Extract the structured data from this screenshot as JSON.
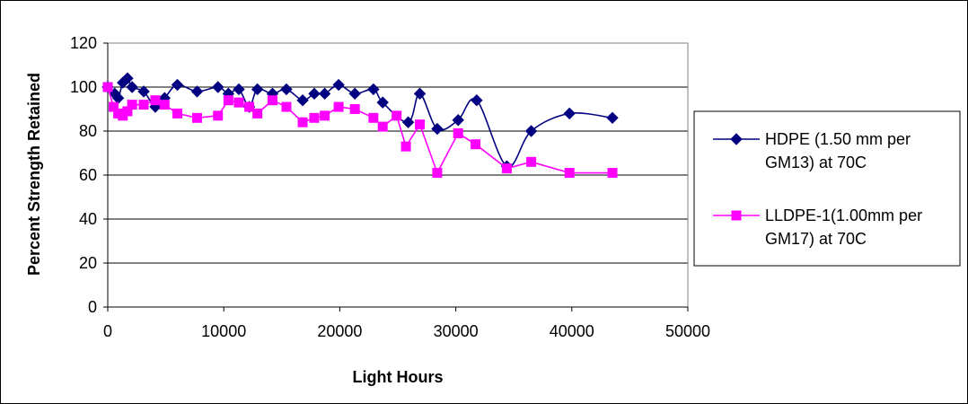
{
  "chart_data": {
    "type": "line",
    "title": "",
    "xlabel": "Light Hours",
    "ylabel": "Percent Strength Retained",
    "xlim": [
      0,
      50000
    ],
    "ylim": [
      0,
      120
    ],
    "xticks": [
      "0",
      "10000",
      "20000",
      "30000",
      "40000",
      "50000"
    ],
    "yticks": [
      "0",
      "20",
      "40",
      "60",
      "80",
      "100",
      "120"
    ],
    "grid": "horizontal",
    "legend_position": "right",
    "series": [
      {
        "name": "HDPE (1.50 mm per GM13) at 70C",
        "name_lines": [
          "HDPE (1.50 mm per",
          "GM13) at 70C"
        ],
        "color": "#000080",
        "marker": "diamond",
        "smooth": true,
        "x": [
          0,
          600,
          900,
          1300,
          1700,
          2100,
          3100,
          4100,
          4900,
          6000,
          7700,
          9500,
          10400,
          11300,
          12200,
          12900,
          14200,
          15400,
          16800,
          17800,
          18700,
          19900,
          21300,
          22900,
          23700,
          25900,
          26900,
          28400,
          30200,
          31800,
          34400,
          36500,
          39800,
          43500
        ],
        "y": [
          100,
          97,
          95,
          102,
          104,
          100,
          98,
          91,
          95,
          101,
          98,
          100,
          97,
          99,
          91,
          99,
          97,
          99,
          94,
          97,
          97,
          101,
          97,
          99,
          93,
          84,
          97,
          81,
          85,
          94,
          64,
          80,
          88,
          86
        ]
      },
      {
        "name": "LLDPE-1(1.00mm per GM17) at 70C",
        "name_lines": [
          "LLDPE-1(1.00mm per",
          "GM17) at 70C"
        ],
        "color": "#FF00FF",
        "marker": "square",
        "smooth": false,
        "x": [
          0,
          500,
          900,
          1300,
          1700,
          2100,
          3100,
          4100,
          4900,
          6000,
          7700,
          9500,
          10400,
          11300,
          12200,
          12900,
          14200,
          15400,
          16800,
          17800,
          18700,
          19900,
          21300,
          22900,
          23700,
          24900,
          25700,
          26900,
          28400,
          30200,
          31700,
          34400,
          36500,
          39800,
          43500
        ],
        "y": [
          100,
          91,
          88,
          87,
          89,
          92,
          92,
          94,
          92,
          88,
          86,
          87,
          94,
          93,
          91,
          88,
          94,
          91,
          84,
          86,
          87,
          91,
          90,
          86,
          82,
          87,
          73,
          83,
          61,
          79,
          74,
          63,
          66,
          61,
          61
        ]
      }
    ]
  }
}
